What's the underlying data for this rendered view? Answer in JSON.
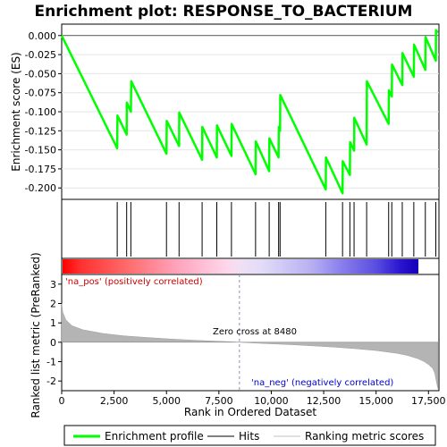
{
  "chart_data": {
    "type": "line",
    "title": "Enrichment plot: RESPONSE_TO_BACTERIUM",
    "top_panel": {
      "ylabel": "Enrichment score (ES)",
      "ylim": [
        -0.215,
        0.015
      ],
      "yticks": [
        0.0,
        -0.025,
        -0.05,
        -0.075,
        -0.1,
        -0.125,
        -0.15,
        -0.175,
        -0.2
      ],
      "ytick_labels": [
        "0.000",
        "-0.025",
        "-0.050",
        "-0.075",
        "-0.100",
        "-0.125",
        "-0.150",
        "-0.175",
        "-0.200"
      ],
      "series": [
        {
          "name": "Enrichment profile",
          "color": "#00ff00",
          "x": [
            0,
            2650,
            2660,
            3100,
            3110,
            3300,
            3320,
            5000,
            5010,
            5600,
            5610,
            6700,
            6710,
            7400,
            7410,
            8100,
            8110,
            9250,
            9260,
            9900,
            9910,
            10350,
            10360,
            10420,
            10430,
            12600,
            12610,
            13400,
            13410,
            13750,
            13760,
            13950,
            13960,
            14550,
            14560,
            15600,
            15610,
            15750,
            15760,
            16250,
            16260,
            16800,
            16810,
            17350,
            17360,
            17850,
            17860,
            17950
          ],
          "y": [
            0.0,
            -0.148,
            -0.105,
            -0.13,
            -0.088,
            -0.1,
            -0.06,
            -0.155,
            -0.112,
            -0.145,
            -0.101,
            -0.163,
            -0.12,
            -0.16,
            -0.118,
            -0.158,
            -0.116,
            -0.182,
            -0.139,
            -0.178,
            -0.135,
            -0.16,
            -0.12,
            -0.125,
            -0.078,
            -0.202,
            -0.16,
            -0.207,
            -0.165,
            -0.183,
            -0.14,
            -0.151,
            -0.108,
            -0.143,
            -0.06,
            -0.116,
            -0.072,
            -0.08,
            -0.038,
            -0.065,
            -0.023,
            -0.054,
            -0.012,
            -0.045,
            -0.002,
            -0.033,
            0.007,
            0.004
          ]
        }
      ]
    },
    "hits": {
      "name": "Hits",
      "positions": [
        2650,
        3100,
        3300,
        5000,
        5600,
        6700,
        7400,
        8100,
        9250,
        9900,
        10350,
        10420,
        12600,
        13400,
        13750,
        13950,
        14550,
        15600,
        15750,
        16250,
        16800,
        17350,
        17850
      ]
    },
    "bottom_panel": {
      "name": "Ranking metric scores",
      "ylabel": "Ranked list metric (PreRanked)",
      "xlabel": "Rank in Ordered Dataset",
      "ylim": [
        -2.5,
        3.5
      ],
      "yticks": [
        3,
        2,
        1,
        0,
        -1,
        -2
      ],
      "xlim": [
        0,
        18000
      ],
      "xticks": [
        0,
        2500,
        5000,
        7500,
        10000,
        12500,
        15000,
        17500
      ],
      "xtick_labels": [
        "0",
        "2,500",
        "5,000",
        "7,500",
        "10,000",
        "12,500",
        "15,000",
        "17,500"
      ],
      "metric_x": [
        0,
        50,
        200,
        500,
        1000,
        2000,
        3000,
        4000,
        5000,
        6000,
        7000,
        8000,
        8480,
        9000,
        10000,
        11000,
        12000,
        13000,
        14000,
        15000,
        16000,
        16500,
        17000,
        17300,
        17500,
        17700,
        17800,
        17870,
        17950
      ],
      "metric_y": [
        2.0,
        1.55,
        1.15,
        0.85,
        0.65,
        0.45,
        0.33,
        0.25,
        0.18,
        0.12,
        0.07,
        0.03,
        0.0,
        -0.03,
        -0.08,
        -0.13,
        -0.19,
        -0.25,
        -0.33,
        -0.43,
        -0.57,
        -0.68,
        -0.85,
        -1.0,
        -1.15,
        -1.35,
        -1.6,
        -2.0,
        -2.4
      ],
      "zero_cross_label": "Zero cross at 8480",
      "zero_cross": 8480,
      "pos_label": "'na_pos' (positively correlated)",
      "neg_label": "'na_neg' (negatively correlated)",
      "pos_color": "#cc0000",
      "neg_color": "#0000cc"
    },
    "legend": [
      {
        "label": "Enrichment profile",
        "color": "#00ff00"
      },
      {
        "label": "Hits",
        "color": "#000000"
      },
      {
        "label": "Ranking metric scores",
        "color": "#c0c0c0"
      }
    ]
  }
}
